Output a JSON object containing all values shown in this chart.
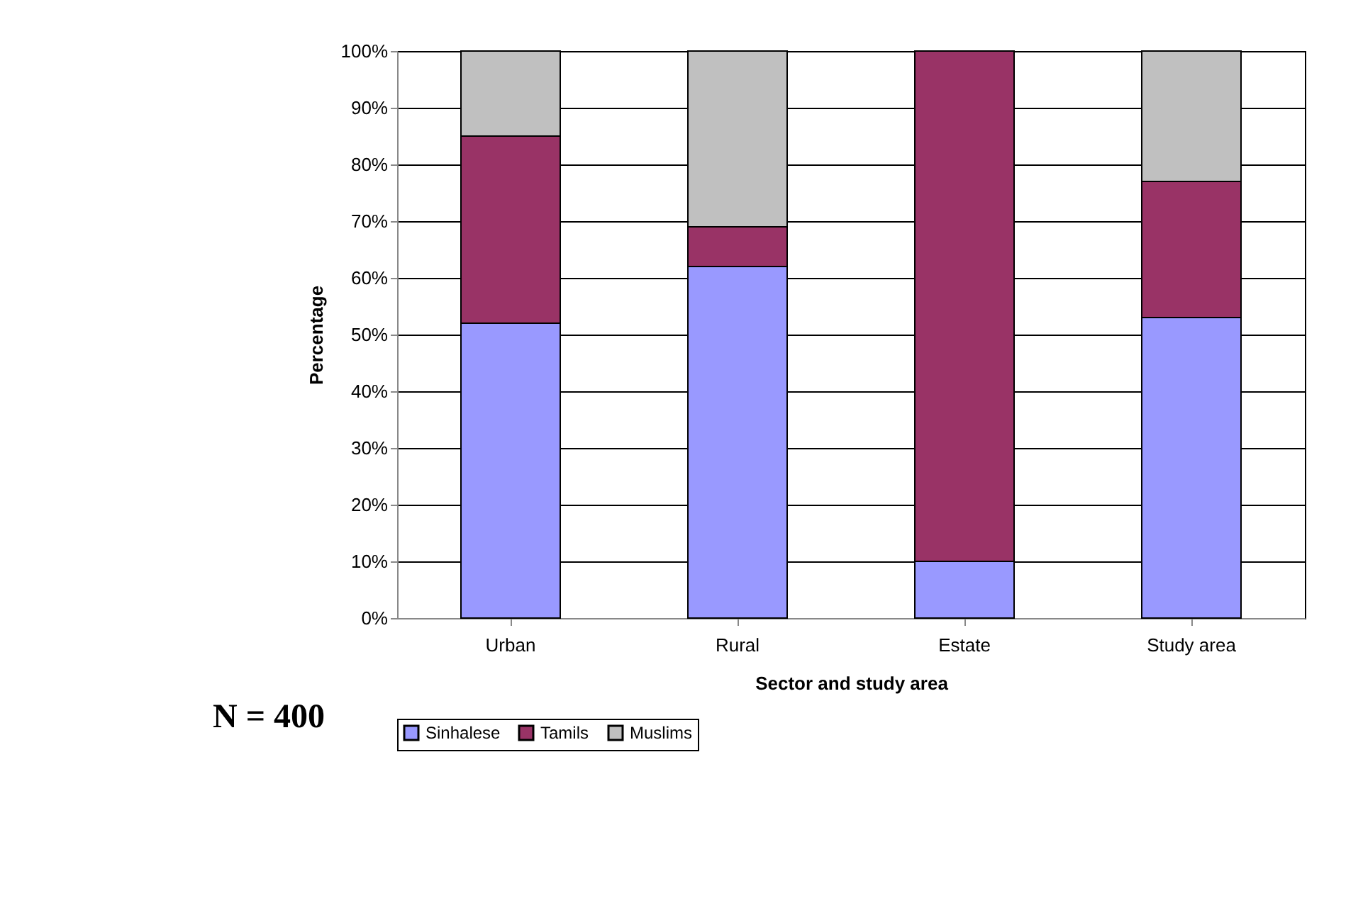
{
  "chart_data": {
    "type": "bar",
    "stacked": true,
    "xlabel": "Sector and study area",
    "ylabel": "Percentage",
    "categories": [
      "Urban",
      "Rural",
      "Estate",
      "Study area"
    ],
    "series": [
      {
        "name": "Sinhalese",
        "color": "#9999ff",
        "values": [
          52,
          62,
          10,
          53
        ]
      },
      {
        "name": "Tamils",
        "color": "#993366",
        "values": [
          33,
          7,
          90,
          24
        ]
      },
      {
        "name": "Muslims",
        "color": "#c0c0c0",
        "values": [
          15,
          31,
          null,
          23
        ]
      }
    ],
    "ylim": [
      0,
      100
    ],
    "yticks": [
      {
        "value": 0,
        "label": "0%"
      },
      {
        "value": 10,
        "label": "10%"
      },
      {
        "value": 20,
        "label": "20%"
      },
      {
        "value": 30,
        "label": "30%"
      },
      {
        "value": 40,
        "label": "40%"
      },
      {
        "value": 50,
        "label": "50%"
      },
      {
        "value": 60,
        "label": "60%"
      },
      {
        "value": 70,
        "label": "70%"
      },
      {
        "value": 80,
        "label": "80%"
      },
      {
        "value": 90,
        "label": "90%"
      },
      {
        "value": 100,
        "label": "100%"
      }
    ],
    "grid": "y",
    "legend": "bottom",
    "annotations": [
      "N = 400"
    ]
  }
}
